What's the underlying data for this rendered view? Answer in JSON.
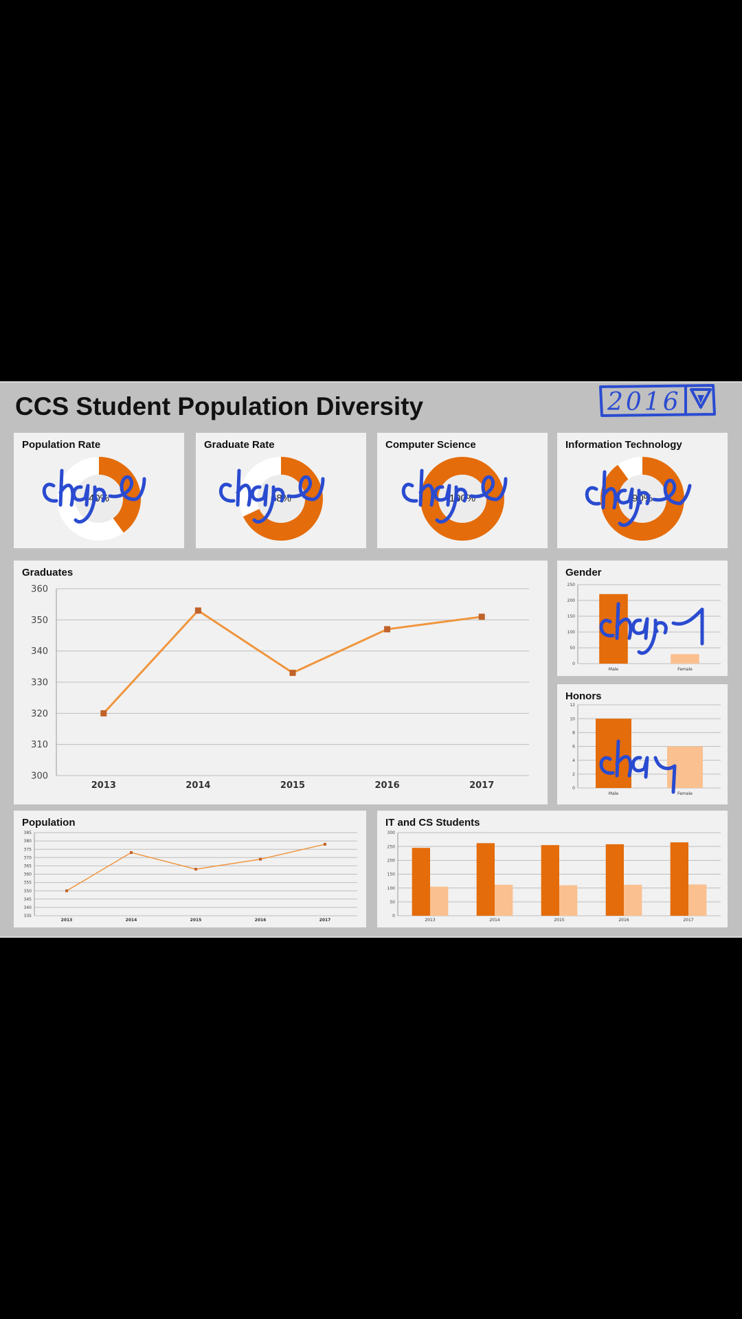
{
  "dashboard": {
    "title": "CCS Student Population Diversity",
    "year_selector": {
      "value": "2016",
      "icon": "dropdown-triangle-icon"
    },
    "annotation_text": "change",
    "colors": {
      "primary": "#e46c0a",
      "light": "#fac090",
      "line": "#f0953d",
      "marker": "#c0622a",
      "ink": "#2a4bd0",
      "card": "#f1f1f1",
      "panel": "#c0c0c0"
    }
  },
  "kpis": [
    {
      "title": "Population Rate",
      "label": "40%",
      "value": 40
    },
    {
      "title": "Graduate Rate",
      "label": "68%",
      "value": 68
    },
    {
      "title": "Computer Science",
      "label": "100%",
      "value": 100
    },
    {
      "title": "Information Technology",
      "label": "90%",
      "value": 90
    }
  ],
  "panels": {
    "graduates": {
      "title": "Graduates"
    },
    "gender": {
      "title": "Gender"
    },
    "honors": {
      "title": "Honors"
    },
    "population": {
      "title": "Population"
    },
    "itcs": {
      "title": "IT and CS Students"
    }
  },
  "chart_data": [
    {
      "type": "line",
      "title": "Graduates",
      "categories": [
        "2013",
        "2014",
        "2015",
        "2016",
        "2017"
      ],
      "values": [
        320,
        353,
        333,
        347,
        351
      ],
      "ylim": [
        300,
        360
      ],
      "yticks": [
        300,
        310,
        320,
        330,
        340,
        350,
        360
      ],
      "grid": true
    },
    {
      "type": "bar",
      "title": "Gender",
      "categories": [
        "Male",
        "Female"
      ],
      "values": [
        220,
        30
      ],
      "ylim": [
        0,
        250
      ],
      "yticks": [
        0,
        50,
        100,
        150,
        200,
        250
      ],
      "grid": true
    },
    {
      "type": "bar",
      "title": "Honors",
      "categories": [
        "Male",
        "Female"
      ],
      "values": [
        10,
        6
      ],
      "ylim": [
        0,
        12
      ],
      "yticks": [
        0,
        2,
        4,
        6,
        8,
        10,
        12
      ],
      "grid": true
    },
    {
      "type": "line",
      "title": "Population",
      "categories": [
        "2013",
        "2014",
        "2015",
        "2016",
        "2017"
      ],
      "values": [
        350,
        373,
        363,
        369,
        378
      ],
      "ylim": [
        335,
        385
      ],
      "yticks": [
        335,
        340,
        345,
        350,
        355,
        360,
        365,
        370,
        375,
        380,
        385
      ],
      "grid": true
    },
    {
      "type": "bar",
      "title": "IT and CS Students",
      "categories": [
        "2013",
        "2014",
        "2015",
        "2016",
        "2017"
      ],
      "series": [
        {
          "values": [
            245,
            262,
            255,
            258,
            265
          ]
        },
        {
          "values": [
            105,
            112,
            110,
            112,
            113
          ]
        }
      ],
      "ylim": [
        0,
        300
      ],
      "yticks": [
        0,
        50,
        100,
        150,
        200,
        250,
        300
      ],
      "grid": true
    }
  ]
}
